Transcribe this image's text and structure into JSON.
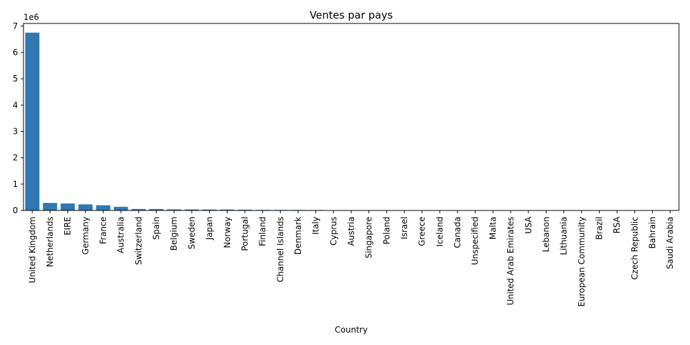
{
  "chart_data": {
    "type": "bar",
    "title": "Ventes par pays",
    "xlabel": "Country",
    "ylabel": "",
    "y_scale_label": "1e6",
    "y_scale_factor": 1000000,
    "ylim": [
      0,
      7100000
    ],
    "y_ticks": [
      0,
      1000000,
      2000000,
      3000000,
      4000000,
      5000000,
      6000000,
      7000000
    ],
    "y_tick_labels": [
      "0",
      "1",
      "2",
      "3",
      "4",
      "5",
      "6",
      "7"
    ],
    "bar_color": "#2f78b1",
    "grid": false,
    "categories": [
      "United Kingdom",
      "Netherlands",
      "EIRE",
      "Germany",
      "France",
      "Australia",
      "Switzerland",
      "Spain",
      "Belgium",
      "Sweden",
      "Japan",
      "Norway",
      "Portugal",
      "Finland",
      "Channel Islands",
      "Denmark",
      "Italy",
      "Cyprus",
      "Austria",
      "Singapore",
      "Poland",
      "Israel",
      "Greece",
      "Iceland",
      "Canada",
      "Unspecified",
      "Malta",
      "United Arab Emirates",
      "USA",
      "Lebanon",
      "Lithuania",
      "European Community",
      "Brazil",
      "RSA",
      "Czech Republic",
      "Bahrain",
      "Saudi Arabia"
    ],
    "values": [
      6750000,
      285000,
      265000,
      230000,
      197000,
      138000,
      56000,
      55000,
      41000,
      38000,
      35000,
      35000,
      29000,
      22000,
      20000,
      19000,
      17000,
      13000,
      10000,
      9000,
      7000,
      7000,
      5000,
      4000,
      3500,
      3000,
      2500,
      1900,
      1700,
      1700,
      1600,
      1300,
      1100,
      1000,
      700,
      550,
      130
    ]
  }
}
